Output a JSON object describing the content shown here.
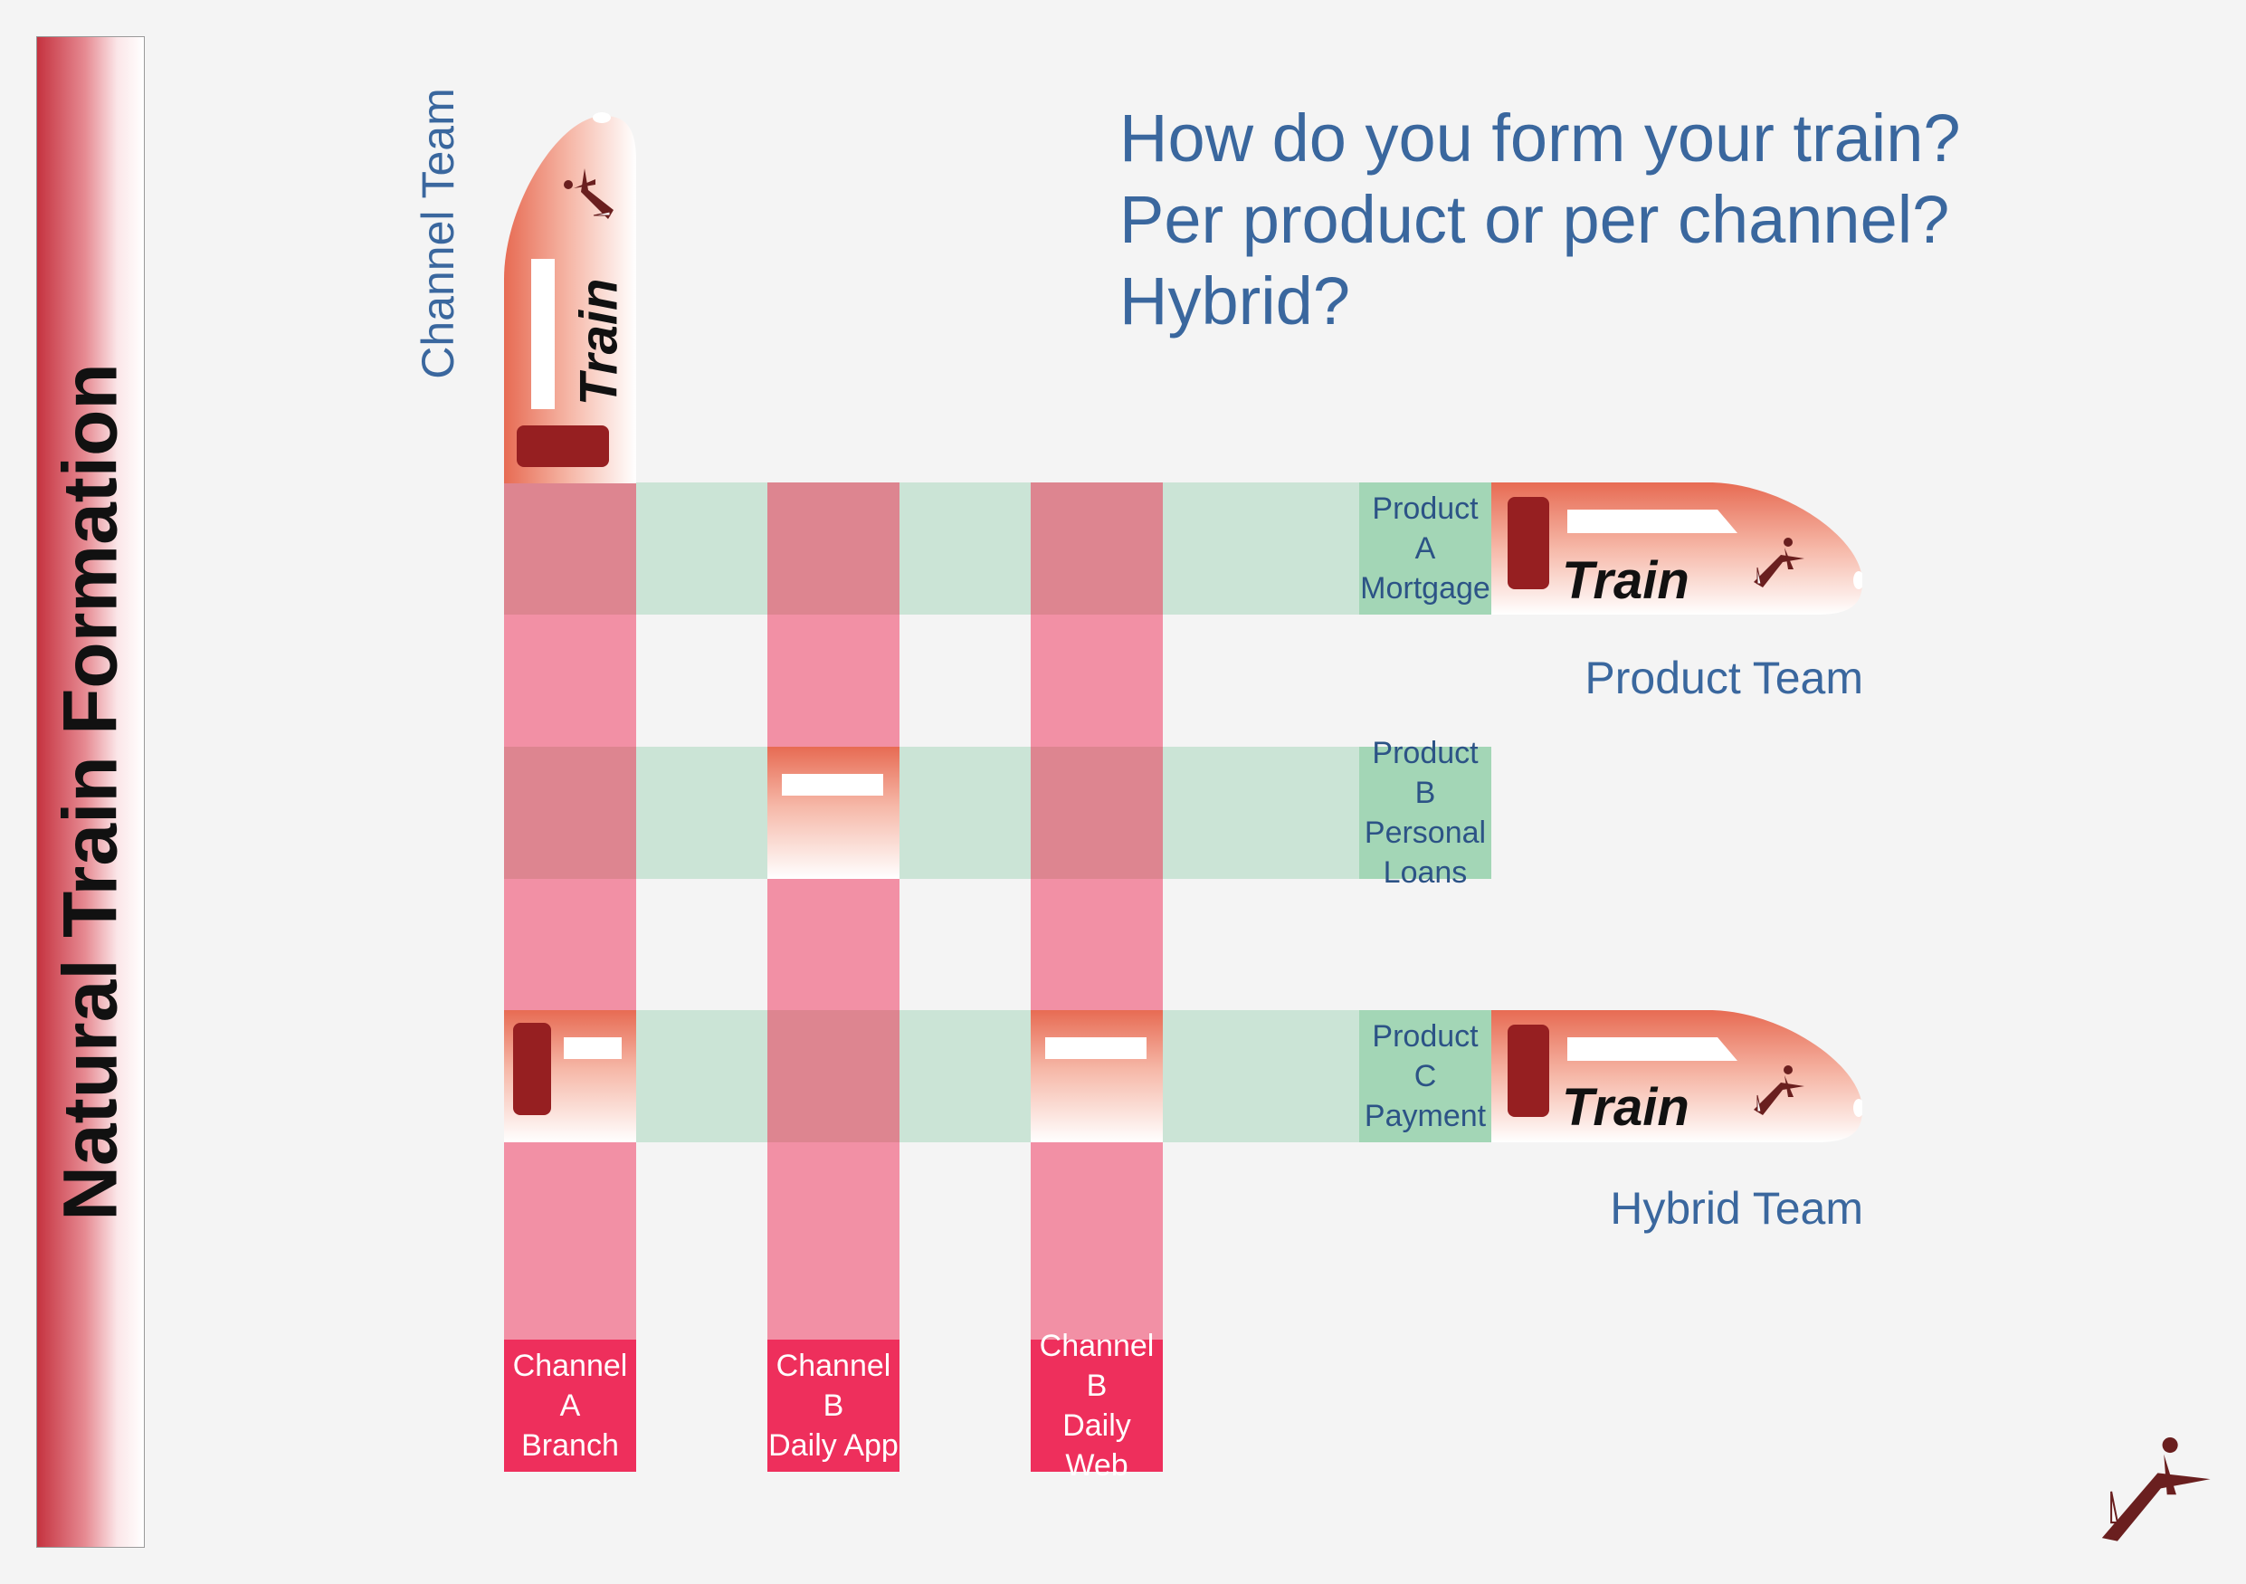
{
  "title": "Natural Train Formation",
  "question": {
    "line1": "How do you form your train?",
    "line2": "Per product or per channel?",
    "line3": "Hybrid?"
  },
  "team_labels": {
    "channel": "Channel Team",
    "product": "Product Team",
    "hybrid": "Hybrid Team"
  },
  "train_word": "Train",
  "channels": [
    {
      "line1": "Channel A",
      "line2": "Branch"
    },
    {
      "line1": "Channel B",
      "line2": "Daily App"
    },
    {
      "line1": "Channel B",
      "line2": "Daily Web"
    }
  ],
  "products": [
    {
      "lines": [
        "Product A",
        "Mortgage"
      ]
    },
    {
      "lines": [
        "Product B",
        "Personal",
        "Loans"
      ]
    },
    {
      "lines": [
        "Product C",
        "Payment"
      ]
    }
  ],
  "colors": {
    "accent_text": "#3a679e",
    "channel_column": "#f290a5",
    "channel_label": "#ee2f5c",
    "product_row": "#c8e6d5",
    "product_label": "#a3d6b6",
    "train_body": "#e76b53",
    "train_door": "#961f21",
    "logo": "#6a1f1f"
  },
  "icons": [
    "dancer-logo-icon"
  ]
}
